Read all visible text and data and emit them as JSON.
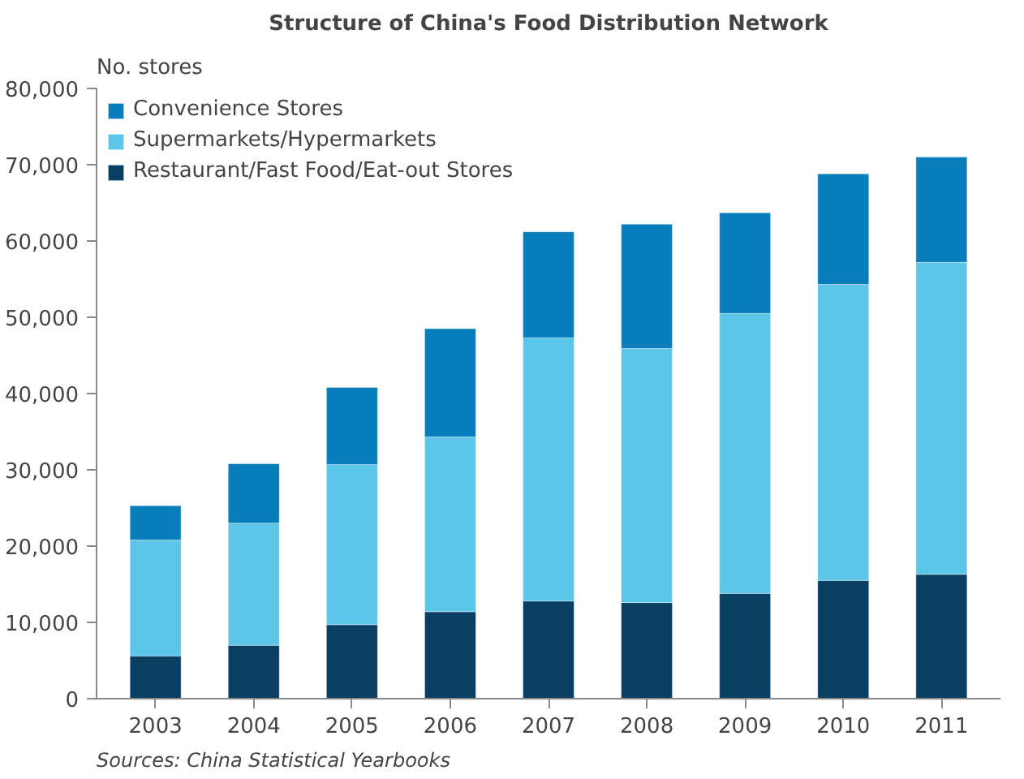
{
  "chart_data": {
    "type": "bar",
    "title": "Structure of China's Food Distribution Network",
    "ylabel": "No. stores",
    "stacked": true,
    "categories": [
      "2003",
      "2004",
      "2005",
      "2006",
      "2007",
      "2008",
      "2009",
      "2010",
      "2011"
    ],
    "series": [
      {
        "name": "Restaurant/Fast Food/Eat-out Stores",
        "color": "#093f63",
        "values": [
          5600,
          7000,
          9700,
          11400,
          12800,
          12600,
          13800,
          15500,
          16300
        ]
      },
      {
        "name": "Supermarkets/Hypermarkets",
        "color": "#5bc6e8",
        "values": [
          15200,
          16000,
          21000,
          22900,
          34500,
          33300,
          36700,
          38800,
          40900
        ]
      },
      {
        "name": "Convenience Stores",
        "color": "#077dba",
        "values": [
          4500,
          7800,
          10100,
          14200,
          13900,
          16300,
          13200,
          14500,
          13800
        ]
      }
    ],
    "ylim": [
      0,
      80000
    ],
    "yticks": [
      {
        "value": 0,
        "label": "0"
      },
      {
        "value": 10000,
        "label": "10,000"
      },
      {
        "value": 20000,
        "label": "20,000"
      },
      {
        "value": 30000,
        "label": "30,000"
      },
      {
        "value": 40000,
        "label": "40,000"
      },
      {
        "value": 50000,
        "label": "50,000"
      },
      {
        "value": 60000,
        "label": "60,000"
      },
      {
        "value": 70000,
        "label": "70,000"
      },
      {
        "value": 80000,
        "label": "80,000"
      }
    ],
    "grid": false,
    "legend": "top left",
    "annotations": [
      "Sources: China Statistical Yearbooks"
    ]
  }
}
